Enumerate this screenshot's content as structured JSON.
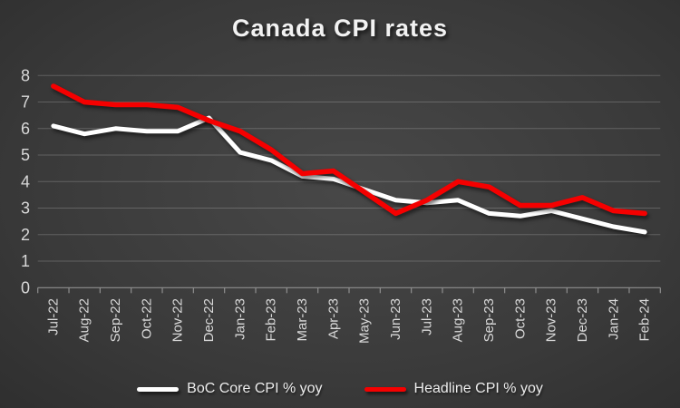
{
  "title": "Canada CPI rates",
  "chart_data": {
    "type": "line",
    "title": "Canada CPI rates",
    "categories": [
      "Jul-22",
      "Aug-22",
      "Sep-22",
      "Oct-22",
      "Nov-22",
      "Dec-22",
      "Jan-23",
      "Feb-23",
      "Mar-23",
      "Apr-23",
      "May-23",
      "Jun-23",
      "Jul-23",
      "Aug-23",
      "Sep-23",
      "Oct-23",
      "Nov-23",
      "Dec-23",
      "Jan-24",
      "Feb-24"
    ],
    "series": [
      {
        "name": "BoC Core CPI % yoy",
        "color": "#ffffff",
        "values": [
          6.1,
          5.8,
          6.0,
          5.9,
          5.9,
          6.4,
          5.1,
          4.8,
          4.2,
          4.1,
          3.7,
          3.3,
          3.2,
          3.3,
          2.8,
          2.7,
          2.9,
          2.6,
          2.3,
          2.1
        ]
      },
      {
        "name": "Headline CPI % yoy",
        "color": "#f50000",
        "values": [
          7.6,
          7.0,
          6.9,
          6.9,
          6.8,
          6.3,
          5.9,
          5.2,
          4.3,
          4.4,
          3.6,
          2.8,
          3.3,
          4.0,
          3.8,
          3.1,
          3.1,
          3.4,
          2.9,
          2.8
        ]
      }
    ],
    "ylim": [
      0,
      8
    ],
    "ytick_step": 1,
    "xlabel": "",
    "ylabel": "",
    "grid": true,
    "legend_position": "bottom"
  },
  "colors": {
    "grid": "rgba(255,255,255,0.20)",
    "axis": "#8f8f8f",
    "tick_label": "#d9d9d9",
    "title_text": "#f2f2f2"
  }
}
